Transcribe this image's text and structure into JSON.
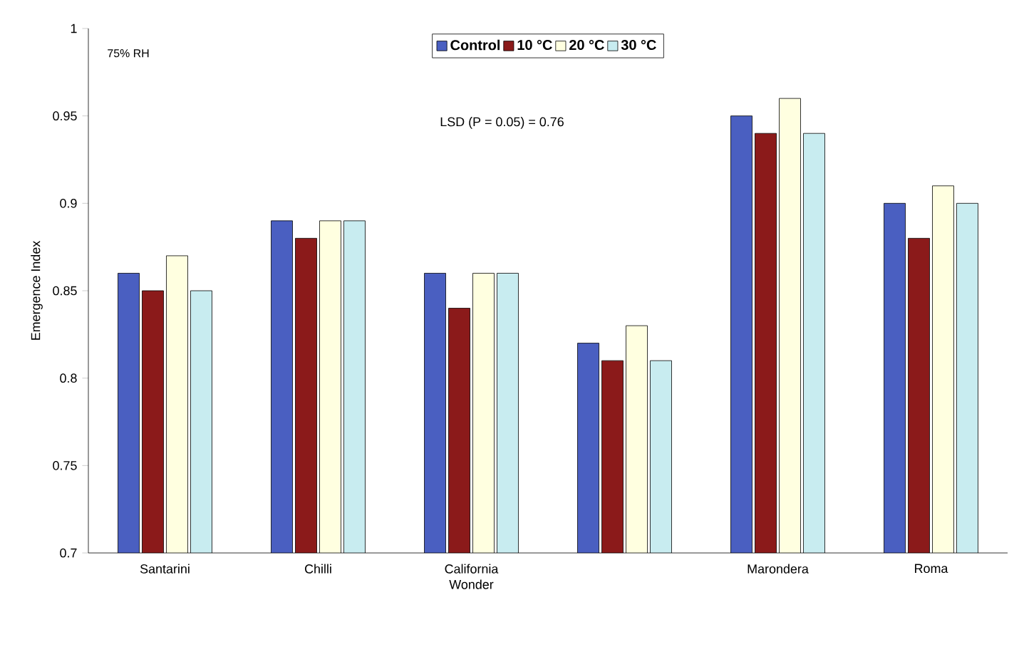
{
  "chart_data": {
    "type": "bar",
    "ylabel": "Emergence Index",
    "categories": [
      "Santarini",
      "Chilli",
      "California Wonder",
      null,
      "Marondera",
      "Roma"
    ],
    "series": [
      {
        "name": "Control",
        "color": "#4a5fc1",
        "values": [
          0.86,
          0.89,
          0.86,
          0.82,
          0.95,
          0.9
        ]
      },
      {
        "name": "10 °C",
        "color": "#8b1a1a",
        "values": [
          0.85,
          0.88,
          0.84,
          0.81,
          0.94,
          0.88
        ]
      },
      {
        "name": "20 °C",
        "color": "#ffffe0",
        "values": [
          0.87,
          0.89,
          0.86,
          0.83,
          0.96,
          0.91
        ]
      },
      {
        "name": "30 °C",
        "color": "#c8ecf0",
        "values": [
          0.85,
          0.89,
          0.86,
          0.81,
          0.94,
          0.9
        ]
      }
    ],
    "ylim": [
      0.7,
      1
    ],
    "yticks": [
      0.7,
      0.75,
      0.8,
      0.85,
      0.9,
      0.95,
      1
    ],
    "grid": false,
    "legend": "top",
    "annotations": [
      "75% RH",
      "LSD (P = 0.05) = 0.76"
    ]
  }
}
